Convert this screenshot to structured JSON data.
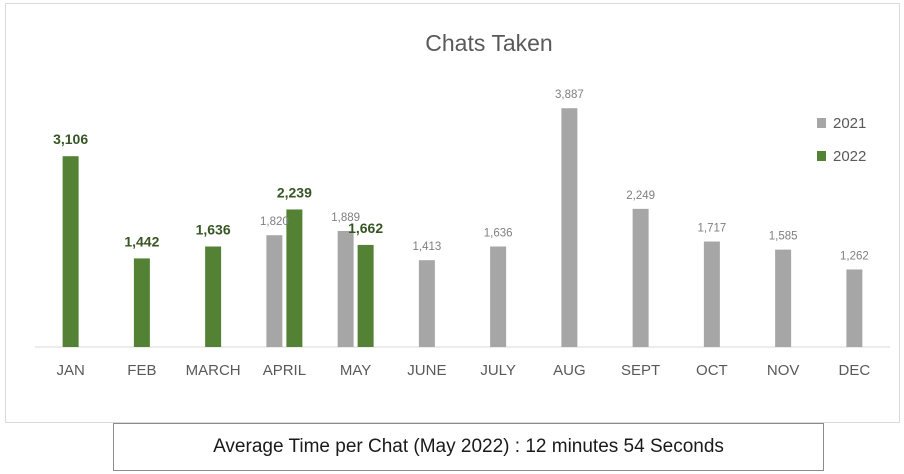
{
  "chart_data": {
    "type": "bar",
    "title": "Chats Taken",
    "categories": [
      "JAN",
      "FEB",
      "MARCH",
      "APRIL",
      "MAY",
      "JUNE",
      "JULY",
      "AUG",
      "SEPT",
      "OCT",
      "NOV",
      "DEC"
    ],
    "series": [
      {
        "name": "2021",
        "color": "#a6a6a6",
        "values": [
          null,
          null,
          null,
          1820,
          1889,
          1413,
          1636,
          3887,
          2249,
          1717,
          1585,
          1262
        ],
        "labels": [
          "",
          "",
          "",
          "1,820",
          "1,889",
          "1,413",
          "1,636",
          "3,887",
          "2,249",
          "1,717",
          "1,585",
          "1,262"
        ]
      },
      {
        "name": "2022",
        "color": "#548235",
        "values": [
          3106,
          1442,
          1636,
          2239,
          1662,
          null,
          null,
          null,
          null,
          null,
          null,
          null
        ],
        "labels": [
          "3,106",
          "1,442",
          "1,636",
          "2,239",
          "1,662",
          "",
          "",
          "",
          "",
          "",
          "",
          ""
        ]
      }
    ],
    "ylim": [
      0,
      4200
    ],
    "grid": false,
    "legend": "top-right"
  },
  "footer": {
    "text": "Average Time per Chat (May 2022) : 12 minutes 54 Seconds"
  }
}
